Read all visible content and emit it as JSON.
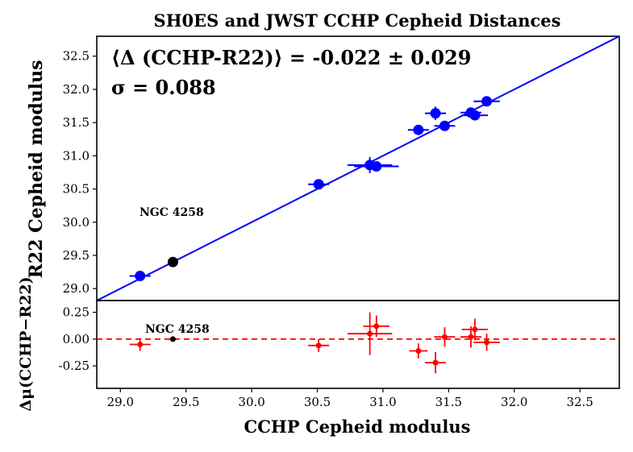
{
  "chart_data": [
    {
      "type": "scatter",
      "title": "SH0ES and JWST CCHP Cepheid Distances",
      "xlabel": "",
      "ylabel": "R22 Cepheid modulus",
      "xlim": [
        28.82,
        32.8
      ],
      "ylim": [
        28.82,
        32.8
      ],
      "yticks": [
        "29.0",
        "29.5",
        "30.0",
        "30.5",
        "31.0",
        "31.5",
        "32.0",
        "32.5"
      ],
      "annotation_line1": "⟨Δ (CCHP-R22)⟩ = -0.022 ± 0.029",
      "annotation_line2": "σ = 0.088",
      "label_ngc": "NGC 4258",
      "colors": {
        "points": "#0000ff",
        "anchor": "#000000",
        "line": "#0000ff"
      },
      "points": [
        {
          "x": 29.15,
          "y": 29.19,
          "xerr": 0.08,
          "yerr": 0.02
        },
        {
          "x": 30.51,
          "y": 30.57,
          "xerr": 0.08,
          "yerr": 0.04
        },
        {
          "x": 30.9,
          "y": 30.86,
          "xerr": 0.17,
          "yerr": 0.12
        },
        {
          "x": 30.95,
          "y": 30.84,
          "xerr": 0.17,
          "yerr": 0.04
        },
        {
          "x": 31.27,
          "y": 31.39,
          "xerr": 0.08,
          "yerr": 0.04
        },
        {
          "x": 31.4,
          "y": 31.64,
          "xerr": 0.08,
          "yerr": 0.1
        },
        {
          "x": 31.47,
          "y": 31.45,
          "xerr": 0.08,
          "yerr": 0.04
        },
        {
          "x": 31.67,
          "y": 31.65,
          "xerr": 0.08,
          "yerr": 0.04
        },
        {
          "x": 31.7,
          "y": 31.61,
          "xerr": 0.1,
          "yerr": 0.04
        },
        {
          "x": 31.79,
          "y": 31.82,
          "xerr": 0.1,
          "yerr": 0.04
        }
      ],
      "anchor": {
        "x": 29.4,
        "y": 29.4
      }
    },
    {
      "type": "scatter",
      "xlabel": "CCHP Cepheid modulus",
      "ylabel": "Δμ(CCHP−R22)",
      "xlim": [
        28.82,
        32.8
      ],
      "ylim": [
        -0.46,
        0.36
      ],
      "xticks": [
        "29.0",
        "29.5",
        "30.0",
        "30.5",
        "31.0",
        "31.5",
        "32.0",
        "32.5"
      ],
      "yticks": [
        "-0.25",
        "0.00",
        "0.25"
      ],
      "label_ngc": "NGC 4258",
      "colors": {
        "points": "#ff0000",
        "anchor": "#000000",
        "zero_line": "#ff0000"
      },
      "points": [
        {
          "x": 29.15,
          "y": -0.05,
          "xerr": 0.08,
          "yerr": 0.06
        },
        {
          "x": 30.51,
          "y": -0.06,
          "xerr": 0.08,
          "yerr": 0.06
        },
        {
          "x": 30.9,
          "y": 0.05,
          "xerr": 0.17,
          "yerr": 0.2
        },
        {
          "x": 30.95,
          "y": 0.12,
          "xerr": 0.1,
          "yerr": 0.1
        },
        {
          "x": 31.27,
          "y": -0.11,
          "xerr": 0.07,
          "yerr": 0.07
        },
        {
          "x": 31.4,
          "y": -0.22,
          "xerr": 0.08,
          "yerr": 0.1
        },
        {
          "x": 31.47,
          "y": 0.02,
          "xerr": 0.08,
          "yerr": 0.09
        },
        {
          "x": 31.67,
          "y": 0.02,
          "xerr": 0.08,
          "yerr": 0.1
        },
        {
          "x": 31.7,
          "y": 0.09,
          "xerr": 0.1,
          "yerr": 0.1
        },
        {
          "x": 31.79,
          "y": -0.03,
          "xerr": 0.1,
          "yerr": 0.08
        }
      ],
      "anchor": {
        "x": 29.4,
        "y": 0.0
      }
    }
  ]
}
